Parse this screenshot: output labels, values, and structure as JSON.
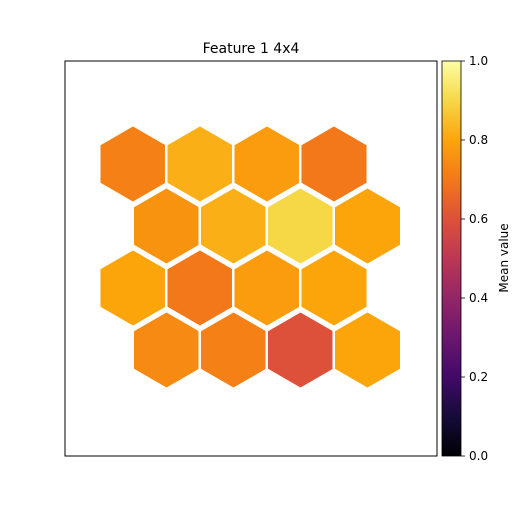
{
  "chart_data": {
    "type": "heatmap",
    "layout": "hexagonal",
    "title": "Feature 1 4x4",
    "xlabel": "",
    "ylabel": "",
    "grid": false,
    "rows": 4,
    "cols": 4,
    "values": [
      [
        0.72,
        0.82,
        0.78,
        0.7
      ],
      [
        0.76,
        0.82,
        0.9,
        0.8
      ],
      [
        0.8,
        0.7,
        0.78,
        0.8
      ],
      [
        0.74,
        0.72,
        0.6,
        0.8
      ]
    ],
    "colorbar": {
      "label": "Mean value",
      "colormap": "inferno",
      "range": [
        0.0,
        1.0
      ],
      "ticks": [
        "0.0",
        "0.2",
        "0.4",
        "0.6",
        "0.8",
        "1.0"
      ]
    }
  }
}
